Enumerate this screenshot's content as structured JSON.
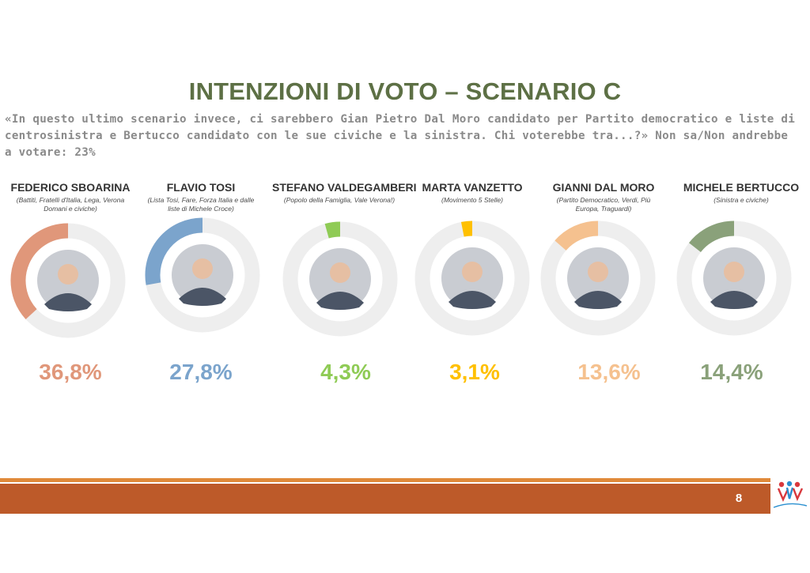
{
  "title": "INTENZIONI DI VOTO – SCENARIO C",
  "subtitle": "«In questo ultimo scenario invece, ci sarebbero Gian Pietro Dal Moro candidato per Partito democratico e liste di centrosinistra e Bertucco candidato con le sue civiche e la sinistra. Chi voterebbe tra...?» Non sa/Non andrebbe a votare: 23%",
  "chart_data": {
    "type": "radial-bar",
    "unit": "%",
    "categories": [
      "FEDERICO SBOARINA",
      "FLAVIO TOSI",
      "STEFANO VALDEGAMBERI",
      "MARTA  VANZETTO",
      "GIANNI DAL MORO",
      "MICHELE BERTUCCO"
    ],
    "values": [
      36.8,
      27.8,
      4.3,
      3.1,
      13.6,
      14.4
    ],
    "value_labels": [
      "36,8%",
      "27,8%",
      "4,3%",
      "3,1%",
      "13,6%",
      "14,4%"
    ]
  },
  "candidates": [
    {
      "name": "FEDERICO SBOARINA",
      "party": "(Battiti, Fratelli d'Italia, Lega, Verona Domani e civiche)",
      "color": "#e0977a"
    },
    {
      "name": "FLAVIO TOSI",
      "party": "(Lista Tosi, Fare, Forza Italia e dalle liste di Michele Croce)",
      "color": "#7ba4cc"
    },
    {
      "name": "STEFANO VALDEGAMBERI",
      "party": "(Popolo della Famiglia, Vale Verona!)",
      "color": "#8fcb55"
    },
    {
      "name": "MARTA  VANZETTO",
      "party": "(Movimento 5 Stelle)",
      "color": "#ffc000"
    },
    {
      "name": "GIANNI DAL MORO",
      "party": "(Partito Democratico, Verdi, Più Europa, Traguardi)",
      "color": "#f5c18f"
    },
    {
      "name": "MICHELE BERTUCCO",
      "party": "(Sinistra e civiche)",
      "color": "#8aa17a"
    }
  ],
  "colors": {
    "title": "#5d7045",
    "track": "#eeeeee",
    "footer_band": "#bd5a29",
    "footer_line": "#e08a3a"
  },
  "footer": {
    "page_number": "8",
    "logo_text": "Winpoll"
  }
}
